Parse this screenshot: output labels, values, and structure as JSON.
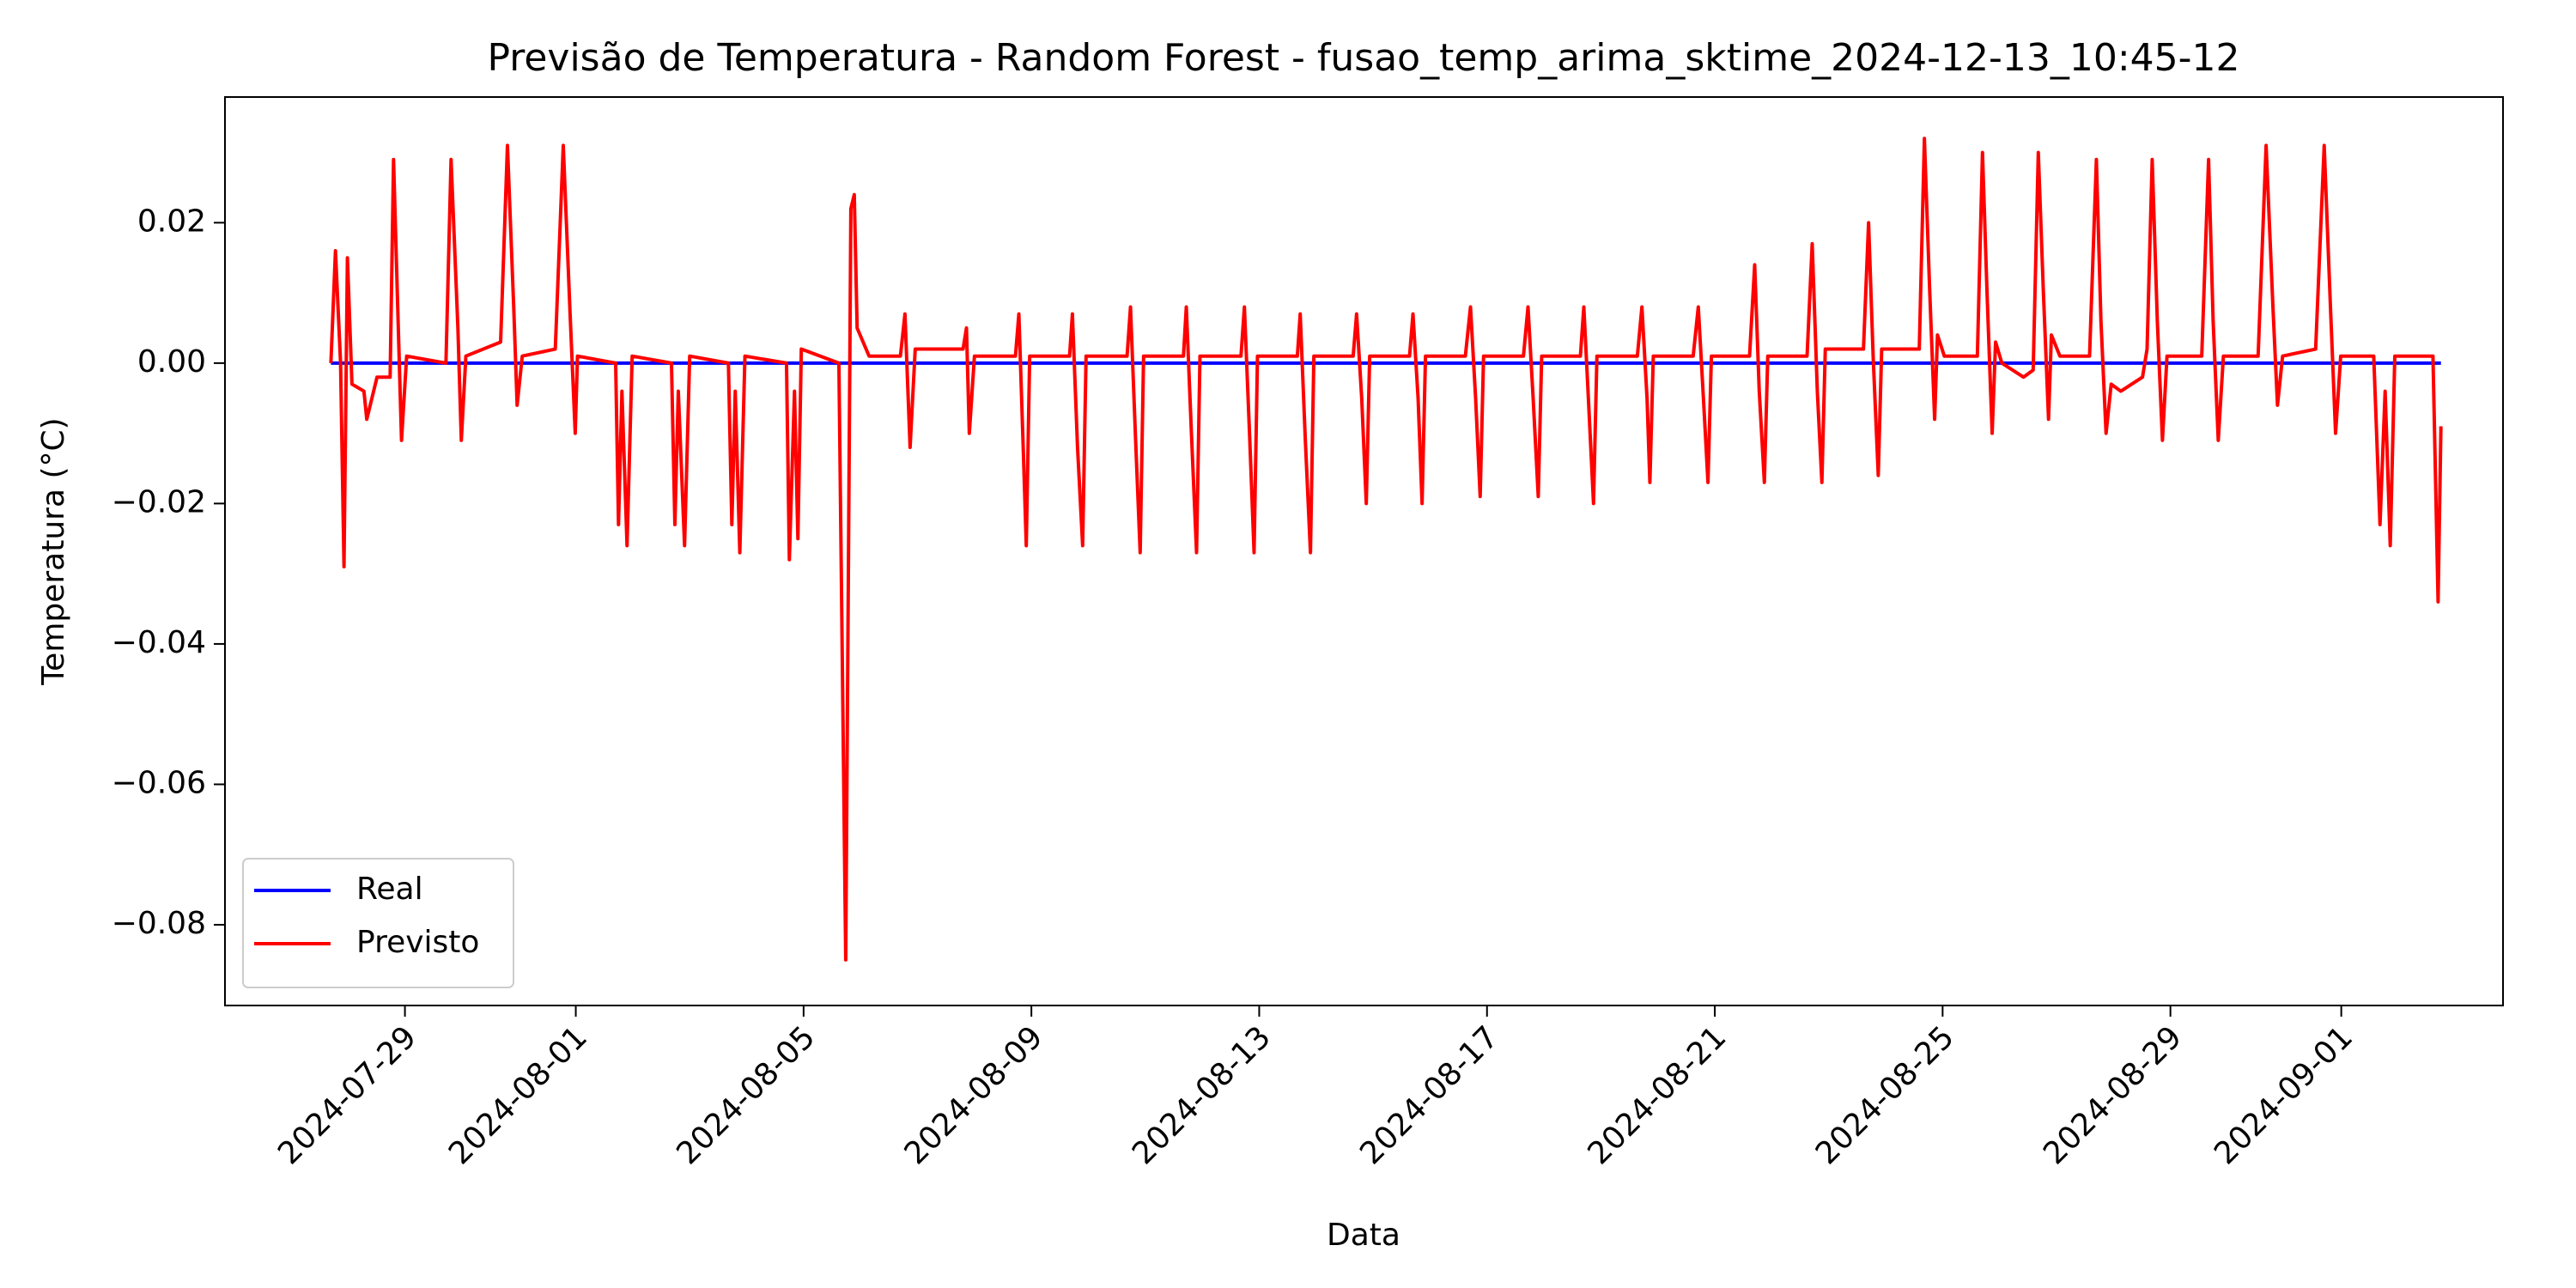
{
  "chart_data": {
    "type": "line",
    "title": "Previsão de Temperatura - Random Forest - fusao_temp_arima_sktime_2024-12-13_10:45-12",
    "x_label": "Data",
    "y_label": "Temperatura (°C)",
    "xlim": [
      19929.84,
      19969.84
    ],
    "xticks": [
      {
        "value": 19933,
        "label": "2024-07-29"
      },
      {
        "value": 19936,
        "label": "2024-08-01"
      },
      {
        "value": 19940,
        "label": "2024-08-05"
      },
      {
        "value": 19944,
        "label": "2024-08-09"
      },
      {
        "value": 19948,
        "label": "2024-08-13"
      },
      {
        "value": 19952,
        "label": "2024-08-17"
      },
      {
        "value": 19956,
        "label": "2024-08-21"
      },
      {
        "value": 19960,
        "label": "2024-08-25"
      },
      {
        "value": 19964,
        "label": "2024-08-29"
      },
      {
        "value": 19967,
        "label": "2024-09-01"
      }
    ],
    "ylim": [
      -0.0915,
      0.0379
    ],
    "yticks": [
      {
        "value": -0.08,
        "label": "−0.08"
      },
      {
        "value": -0.06,
        "label": "−0.06"
      },
      {
        "value": -0.04,
        "label": "−0.04"
      },
      {
        "value": -0.02,
        "label": "−0.02"
      },
      {
        "value": 0,
        "label": "0.00"
      },
      0.02
    ],
    "legend": "lower left",
    "grid": false,
    "series": [
      {
        "name": "Real",
        "color": "#0000ff",
        "x": [
          19931.7,
          19968.75
        ],
        "values": [
          0,
          0
        ]
      },
      {
        "name": "Previsto",
        "color": "#ff0000",
        "x": [
          19931.7,
          19931.78,
          19931.87,
          19931.93,
          19931.99,
          19932.07,
          19932.28,
          19932.33,
          19932.51,
          19932.74,
          19932.8,
          19932.88,
          19932.94,
          19933.03,
          19933.72,
          19933.81,
          19933.93,
          19933.99,
          19934.07,
          19934.68,
          19934.8,
          19934.91,
          19934.97,
          19935.06,
          19935.64,
          19935.78,
          19935.9,
          19935.99,
          19936.03,
          19936.7,
          19936.75,
          19936.81,
          19936.9,
          19936.99,
          19937.68,
          19937.74,
          19937.8,
          19937.91,
          19938.0,
          19938.68,
          19938.74,
          19938.8,
          19938.88,
          19938.97,
          19939.7,
          19939.75,
          19939.84,
          19939.9,
          19939.96,
          19940.62,
          19940.74,
          19940.83,
          19940.89,
          19940.94,
          19941.15,
          19941.7,
          19941.78,
          19941.87,
          19941.96,
          19942.8,
          19942.86,
          19942.91,
          19943.0,
          19943.72,
          19943.78,
          19943.86,
          19943.91,
          19943.97,
          19944.67,
          19944.72,
          19944.81,
          19944.9,
          19944.96,
          19945.68,
          19945.74,
          19945.83,
          19945.91,
          19945.97,
          19946.67,
          19946.72,
          19946.81,
          19946.9,
          19946.96,
          19947.68,
          19947.74,
          19947.83,
          19947.91,
          19947.97,
          19948.67,
          19948.72,
          19948.81,
          19948.9,
          19948.96,
          19949.65,
          19949.71,
          19949.8,
          19949.88,
          19949.94,
          19950.64,
          19950.7,
          19950.79,
          19950.86,
          19950.92,
          19951.62,
          19951.71,
          19951.8,
          19951.88,
          19951.94,
          19952.64,
          19952.72,
          19952.81,
          19952.9,
          19952.96,
          19953.64,
          19953.7,
          19953.78,
          19953.87,
          19953.93,
          19954.64,
          19954.72,
          19954.81,
          19954.86,
          19954.92,
          19955.62,
          19955.71,
          19955.8,
          19955.88,
          19955.94,
          19956.61,
          19956.7,
          19956.78,
          19956.87,
          19956.93,
          19957.62,
          19957.71,
          19957.8,
          19957.88,
          19957.94,
          19958.61,
          19958.7,
          19958.78,
          19958.87,
          19958.93,
          19959.51,
          19959.59,
          19959.68,
          19959.77,
          19959.86,
          19959.91,
          19960.03,
          19960.61,
          19960.7,
          19960.78,
          19960.87,
          19960.93,
          19961.04,
          19961.42,
          19961.59,
          19961.68,
          19961.77,
          19961.86,
          19961.91,
          19962.06,
          19962.58,
          19962.7,
          19962.78,
          19962.87,
          19962.96,
          19963.13,
          19963.51,
          19963.59,
          19963.68,
          19963.77,
          19963.86,
          19963.94,
          19964.55,
          19964.67,
          19964.75,
          19964.84,
          19964.93,
          19965.54,
          19965.68,
          19965.8,
          19965.88,
          19965.97,
          19966.55,
          19966.7,
          19966.81,
          19966.9,
          19966.99,
          19967.57,
          19967.68,
          19967.77,
          19967.86,
          19967.94,
          19968.61,
          19968.7,
          19968.75
        ],
        "values": [
          0,
          0.016,
          0.0,
          -0.029,
          0.015,
          -0.003,
          -0.004,
          -0.008,
          -0.002,
          -0.002,
          0.029,
          0.006,
          -0.011,
          0.001,
          0.0,
          0.029,
          0.005,
          -0.011,
          0.001,
          0.003,
          0.031,
          0.008,
          -0.006,
          0.001,
          0.002,
          0.031,
          0.007,
          -0.01,
          0.001,
          0.0,
          -0.023,
          -0.004,
          -0.026,
          0.001,
          0.0,
          -0.023,
          -0.004,
          -0.026,
          0.001,
          0.0,
          -0.023,
          -0.004,
          -0.027,
          0.001,
          0.0,
          -0.028,
          -0.004,
          -0.025,
          0.002,
          0.0,
          -0.085,
          0.022,
          0.024,
          0.005,
          0.001,
          0.001,
          0.007,
          -0.012,
          0.002,
          0.002,
          0.005,
          -0.01,
          0.001,
          0.001,
          0.007,
          -0.013,
          -0.026,
          0.001,
          0.001,
          0.007,
          -0.012,
          -0.026,
          0.001,
          0.001,
          0.008,
          -0.011,
          -0.027,
          0.001,
          0.001,
          0.008,
          -0.01,
          -0.027,
          0.001,
          0.001,
          0.008,
          -0.01,
          -0.027,
          0.001,
          0.001,
          0.007,
          -0.011,
          -0.027,
          0.001,
          0.001,
          0.007,
          -0.005,
          -0.02,
          0.001,
          0.001,
          0.007,
          -0.005,
          -0.02,
          0.001,
          0.001,
          0.008,
          -0.005,
          -0.019,
          0.001,
          0.001,
          0.008,
          -0.005,
          -0.019,
          0.001,
          0.001,
          0.008,
          -0.005,
          -0.02,
          0.001,
          0.001,
          0.008,
          -0.005,
          -0.017,
          0.001,
          0.001,
          0.008,
          -0.005,
          -0.017,
          0.001,
          0.001,
          0.014,
          -0.004,
          -0.017,
          0.001,
          0.001,
          0.017,
          -0.004,
          -0.017,
          0.002,
          0.002,
          0.02,
          0.001,
          -0.016,
          0.002,
          0.002,
          0.002,
          0.032,
          0.011,
          -0.008,
          0.004,
          0.001,
          0.001,
          0.03,
          0.01,
          -0.01,
          0.003,
          0.0,
          -0.002,
          -0.001,
          0.03,
          0.01,
          -0.008,
          0.004,
          0.001,
          0.001,
          0.029,
          0.006,
          -0.01,
          -0.003,
          -0.004,
          -0.002,
          0.002,
          0.029,
          0.006,
          -0.011,
          0.001,
          0.001,
          0.029,
          0.006,
          -0.011,
          0.001,
          0.001,
          0.031,
          0.008,
          -0.006,
          0.001,
          0.002,
          0.031,
          0.008,
          -0.01,
          0.001,
          0.001,
          -0.023,
          -0.004,
          -0.026,
          0.001,
          0.001,
          -0.034,
          -0.009
        ]
      }
    ]
  }
}
